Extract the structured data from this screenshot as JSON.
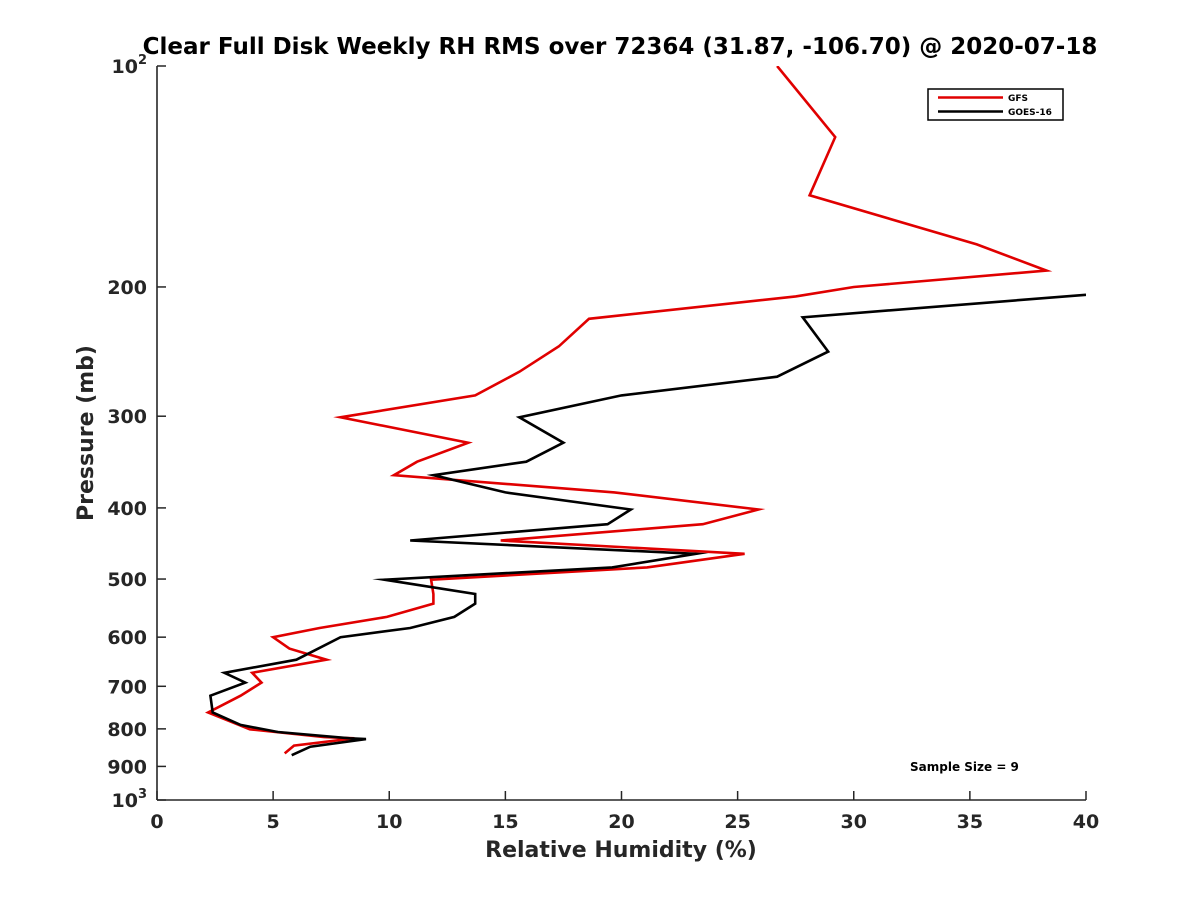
{
  "chart_data": {
    "type": "line",
    "title": "Clear Full Disk Weekly RH RMS over 72364 (31.87, -106.70) @ 2020-07-18",
    "xlabel": "Relative Humidity (%)",
    "ylabel": "Pressure (mb)",
    "xlim": [
      0,
      40
    ],
    "ylim": [
      100,
      1000
    ],
    "y_scale": "log",
    "y_reversed": true,
    "x_ticks": [
      "0",
      "5",
      "10",
      "15",
      "20",
      "25",
      "30",
      "35",
      "40"
    ],
    "y_ticks": [
      {
        "value": 100,
        "base": "10",
        "exp": "2"
      },
      {
        "value": 200,
        "label": "200"
      },
      {
        "value": 300,
        "label": "300"
      },
      {
        "value": 400,
        "label": "400"
      },
      {
        "value": 500,
        "label": "500"
      },
      {
        "value": 600,
        "label": "600"
      },
      {
        "value": 700,
        "label": "700"
      },
      {
        "value": 800,
        "label": "800"
      },
      {
        "value": 900,
        "label": "900"
      },
      {
        "value": 1000,
        "base": "10",
        "exp": "3"
      }
    ],
    "legend_position": "top-right",
    "grid": false,
    "annotation": "Sample Size = 9",
    "series": [
      {
        "name": "GFS",
        "color": "#e00000",
        "points": [
          [
            26.7,
            100
          ],
          [
            29.2,
            125
          ],
          [
            28.1,
            150
          ],
          [
            35.3,
            175
          ],
          [
            38.3,
            190
          ],
          [
            30.0,
            200
          ],
          [
            27.5,
            206
          ],
          [
            18.6,
            221
          ],
          [
            17.3,
            241
          ],
          [
            15.6,
            261
          ],
          [
            13.7,
            281
          ],
          [
            7.9,
            301
          ],
          [
            13.4,
            326
          ],
          [
            11.2,
            346
          ],
          [
            10.2,
            361
          ],
          [
            19.7,
            381
          ],
          [
            25.9,
            402
          ],
          [
            23.5,
            421
          ],
          [
            14.8,
            443
          ],
          [
            25.3,
            462
          ],
          [
            21.1,
            482
          ],
          [
            11.8,
            501
          ],
          [
            11.9,
            524
          ],
          [
            11.9,
            540
          ],
          [
            9.9,
            563
          ],
          [
            7.0,
            583
          ],
          [
            5.0,
            600
          ],
          [
            5.7,
            622
          ],
          [
            7.3,
            644
          ],
          [
            4.1,
            671
          ],
          [
            4.5,
            692
          ],
          [
            3.6,
            721
          ],
          [
            2.2,
            760
          ],
          [
            4.0,
            801
          ],
          [
            7.2,
            821
          ],
          [
            8.5,
            824
          ],
          [
            5.9,
            843
          ],
          [
            5.5,
            864
          ]
        ]
      },
      {
        "name": "GOES-16",
        "color": "#000000",
        "points": [
          [
            40.0,
            205
          ],
          [
            27.8,
            220
          ],
          [
            28.9,
            245
          ],
          [
            26.7,
            265
          ],
          [
            20.0,
            281
          ],
          [
            15.6,
            301
          ],
          [
            17.5,
            326
          ],
          [
            15.9,
            346
          ],
          [
            11.9,
            361
          ],
          [
            15.0,
            381
          ],
          [
            20.4,
            402
          ],
          [
            19.4,
            421
          ],
          [
            10.9,
            443
          ],
          [
            23.2,
            462
          ],
          [
            19.6,
            482
          ],
          [
            9.8,
            501
          ],
          [
            13.7,
            524
          ],
          [
            13.7,
            540
          ],
          [
            12.8,
            563
          ],
          [
            10.9,
            583
          ],
          [
            7.9,
            600
          ],
          [
            6.0,
            644
          ],
          [
            2.9,
            671
          ],
          [
            3.8,
            692
          ],
          [
            2.3,
            721
          ],
          [
            2.4,
            760
          ],
          [
            3.6,
            790
          ],
          [
            5.2,
            808
          ],
          [
            8.3,
            824
          ],
          [
            9.0,
            826
          ],
          [
            6.6,
            846
          ],
          [
            5.8,
            869
          ]
        ]
      }
    ]
  }
}
